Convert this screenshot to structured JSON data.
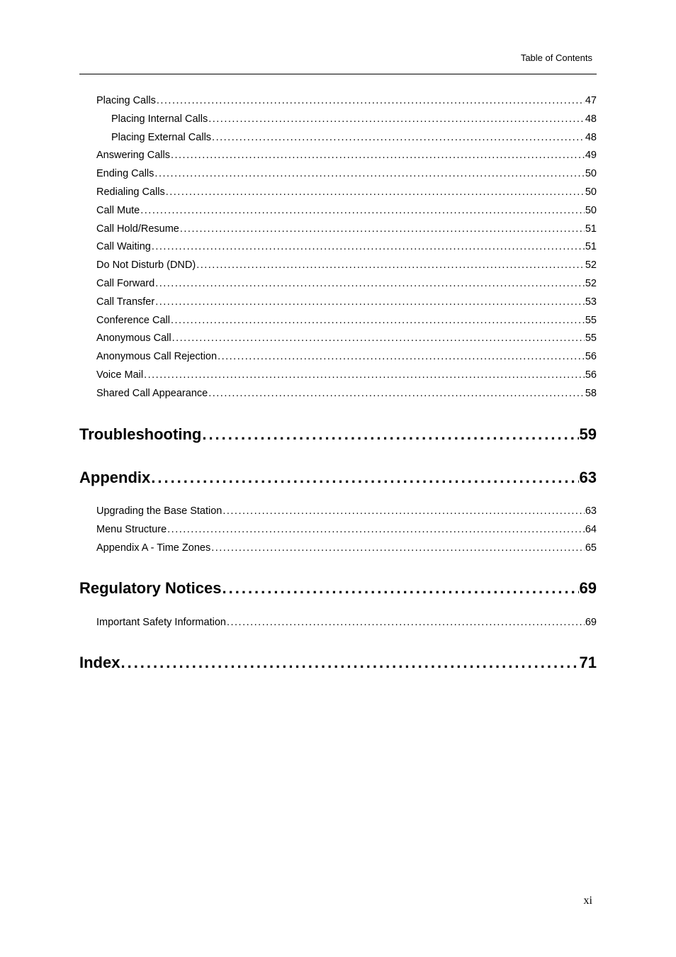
{
  "header": {
    "title": "Table of Contents"
  },
  "footer": {
    "page_number": "xi"
  },
  "toc": {
    "entries": [
      {
        "level": "1",
        "label": "Placing Calls",
        "page": "47"
      },
      {
        "level": "2",
        "label": "Placing Internal Calls",
        "page": "48"
      },
      {
        "level": "2",
        "label": "Placing External Calls",
        "page": "48"
      },
      {
        "level": "1",
        "label": "Answering Calls",
        "page": "49"
      },
      {
        "level": "1",
        "label": "Ending Calls",
        "page": "50"
      },
      {
        "level": "1",
        "label": "Redialing Calls",
        "page": "50"
      },
      {
        "level": "1",
        "label": "Call Mute",
        "page": "50"
      },
      {
        "level": "1",
        "label": "Call Hold/Resume",
        "page": "51"
      },
      {
        "level": "1",
        "label": "Call Waiting",
        "page": "51"
      },
      {
        "level": "1",
        "label": "Do Not Disturb (DND)",
        "page": "52"
      },
      {
        "level": "1",
        "label": "Call Forward",
        "page": "52"
      },
      {
        "level": "1",
        "label": "Call Transfer",
        "page": "53"
      },
      {
        "level": "1",
        "label": "Conference Call",
        "page": "55"
      },
      {
        "level": "1",
        "label": "Anonymous Call",
        "page": "55"
      },
      {
        "level": "1",
        "label": "Anonymous Call Rejection",
        "page": "56"
      },
      {
        "level": "1",
        "label": "Voice Mail",
        "page": "56"
      },
      {
        "level": "1",
        "label": "Shared Call Appearance",
        "page": "58"
      },
      {
        "level": "H",
        "label": "Troubleshooting",
        "page": "59"
      },
      {
        "level": "H",
        "label": "Appendix",
        "page": "63"
      },
      {
        "level": "1",
        "label": "Upgrading the Base Station",
        "page": "63"
      },
      {
        "level": "1",
        "label": "Menu Structure",
        "page": "64"
      },
      {
        "level": "1",
        "label": "Appendix A - Time Zones",
        "page": "65"
      },
      {
        "level": "H",
        "label": "Regulatory Notices",
        "page": "69"
      },
      {
        "level": "1",
        "label": "Important Safety Information",
        "page": "69"
      },
      {
        "level": "H",
        "label": "Index",
        "page": "71"
      }
    ]
  }
}
